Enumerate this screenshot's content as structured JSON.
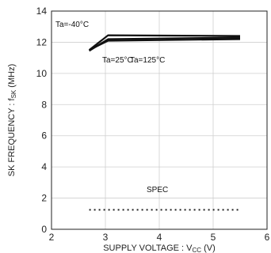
{
  "chart_data": {
    "type": "line",
    "xlabel_main": "SUPPLY VOLTAGE : V",
    "xlabel_sub": "CC",
    "xlabel_tail": " (V)",
    "ylabel_main": "SK FREQUENCY : f",
    "ylabel_sub": "SK",
    "ylabel_tail": " (MHz)",
    "xlim": [
      2,
      6
    ],
    "ylim": [
      0,
      14
    ],
    "x_ticks": [
      2,
      3,
      4,
      5,
      6
    ],
    "y_ticks": [
      0,
      2,
      4,
      6,
      8,
      10,
      12,
      14
    ],
    "grid": true,
    "series": [
      {
        "name": "Ta=-40°C",
        "x": [
          2.7,
          3.05,
          5.5
        ],
        "y": [
          11.5,
          12.45,
          12.4
        ]
      },
      {
        "name": "Ta=25°C",
        "x": [
          2.7,
          3.05,
          5.5
        ],
        "y": [
          11.45,
          12.2,
          12.3
        ]
      },
      {
        "name": "Ta=125°C",
        "x": [
          2.7,
          3.05,
          5.5
        ],
        "y": [
          11.5,
          12.1,
          12.2
        ]
      }
    ],
    "spec": {
      "label": "SPEC",
      "x": [
        2.7,
        5.5
      ],
      "y": [
        1.25,
        1.25
      ]
    }
  }
}
